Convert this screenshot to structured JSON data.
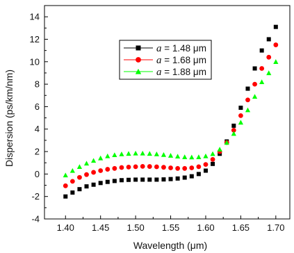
{
  "chart_data": {
    "type": "scatter",
    "xlabel": "Wavelength (μm)",
    "ylabel": "Dispersion (ps/km/nm)",
    "xlim": [
      1.37,
      1.72
    ],
    "ylim": [
      -4,
      15
    ],
    "x_ticks": [
      "1.40",
      "1.45",
      "1.50",
      "1.55",
      "1.60",
      "1.65",
      "1.70"
    ],
    "y_ticks": [
      "-4",
      "-2",
      "0",
      "2",
      "4",
      "6",
      "8",
      "10",
      "12",
      "14"
    ],
    "grid": false,
    "legend_position": "top-center",
    "x": [
      1.4,
      1.41,
      1.42,
      1.43,
      1.44,
      1.45,
      1.46,
      1.47,
      1.48,
      1.49,
      1.5,
      1.51,
      1.52,
      1.53,
      1.54,
      1.55,
      1.56,
      1.57,
      1.58,
      1.59,
      1.6,
      1.61,
      1.62,
      1.63,
      1.64,
      1.65,
      1.66,
      1.67,
      1.68,
      1.69,
      1.7
    ],
    "series": [
      {
        "name": "a = 1.48 μm",
        "legend_var": "a",
        "legend_value": " = 1.48 μm",
        "marker": "square",
        "color": "#000000",
        "values": [
          -2.0,
          -1.65,
          -1.35,
          -1.1,
          -0.95,
          -0.8,
          -0.7,
          -0.62,
          -0.55,
          -0.52,
          -0.5,
          -0.5,
          -0.5,
          -0.5,
          -0.48,
          -0.45,
          -0.4,
          -0.32,
          -0.2,
          0.0,
          0.3,
          0.9,
          1.8,
          2.9,
          4.3,
          5.9,
          7.6,
          9.4,
          11.0,
          12.0,
          13.1
        ]
      },
      {
        "name": "a = 1.68 μm",
        "legend_var": "a",
        "legend_value": " = 1.68 μm",
        "marker": "circle",
        "color": "#ff0000",
        "values": [
          -1.05,
          -0.65,
          -0.3,
          -0.05,
          0.15,
          0.3,
          0.42,
          0.5,
          0.58,
          0.62,
          0.65,
          0.68,
          0.67,
          0.64,
          0.6,
          0.55,
          0.5,
          0.5,
          0.55,
          0.65,
          0.85,
          1.3,
          2.0,
          2.8,
          3.9,
          5.2,
          6.6,
          8.0,
          9.4,
          10.4,
          11.5
        ]
      },
      {
        "name": "a = 1.88 μm",
        "legend_var": "a",
        "legend_value": " = 1.88 μm",
        "marker": "triangle",
        "color": "#00ff00",
        "values": [
          -0.1,
          0.3,
          0.65,
          0.95,
          1.2,
          1.42,
          1.6,
          1.7,
          1.78,
          1.82,
          1.85,
          1.85,
          1.82,
          1.78,
          1.72,
          1.65,
          1.58,
          1.52,
          1.5,
          1.52,
          1.6,
          1.8,
          2.2,
          2.8,
          3.6,
          4.6,
          5.7,
          6.9,
          8.2,
          9.0,
          10.0
        ]
      }
    ]
  }
}
